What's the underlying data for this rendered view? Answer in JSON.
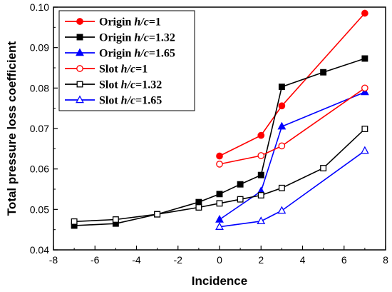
{
  "chart_data": {
    "type": "line",
    "xlabel": "Incidence",
    "ylabel": "Total pressure loss coefficient",
    "xlim": [
      -8,
      8
    ],
    "ylim": [
      0.04,
      0.1
    ],
    "xticks": [
      "-8",
      "-6",
      "-4",
      "-2",
      "0",
      "2",
      "4",
      "6",
      "8"
    ],
    "yticks": [
      "0.04",
      "0.05",
      "0.06",
      "0.07",
      "0.08",
      "0.09",
      "0.10"
    ],
    "grid": false,
    "legend_position": "top-left",
    "series": [
      {
        "name": "Origin h/c=1",
        "label_prefix": "Origin ",
        "label_var": "h/c",
        "label_value": "=1",
        "color": "#ff0000",
        "marker": "circle",
        "filled": true,
        "x": [
          0,
          2,
          3,
          7
        ],
        "y": [
          0.0632,
          0.0683,
          0.0756,
          0.0985
        ]
      },
      {
        "name": "Origin h/c=1.32",
        "label_prefix": "Origin ",
        "label_var": "h/c",
        "label_value": "=1.32",
        "color": "#000000",
        "marker": "square",
        "filled": true,
        "x": [
          -7,
          -5,
          -3,
          -1,
          0,
          1,
          2,
          3,
          5,
          7
        ],
        "y": [
          0.046,
          0.0465,
          0.0488,
          0.0518,
          0.0538,
          0.0562,
          0.0585,
          0.0803,
          0.0839,
          0.0873
        ]
      },
      {
        "name": "Origin h/c=1.65",
        "label_prefix": "Origin ",
        "label_var": "h/c",
        "label_value": "=1.65",
        "color": "#0000ff",
        "marker": "triangle",
        "filled": true,
        "x": [
          0,
          2,
          3,
          7
        ],
        "y": [
          0.0475,
          0.0545,
          0.0705,
          0.079
        ]
      },
      {
        "name": "Slot h/c=1",
        "label_prefix": "Slot ",
        "label_var": "h/c",
        "label_value": "=1",
        "color": "#ff0000",
        "marker": "circle",
        "filled": false,
        "x": [
          0,
          2,
          3,
          7
        ],
        "y": [
          0.0612,
          0.0633,
          0.0657,
          0.08
        ]
      },
      {
        "name": "Slot h/c=1.32",
        "label_prefix": "Slot ",
        "label_var": "h/c",
        "label_value": "=1.32",
        "color": "#000000",
        "marker": "square",
        "filled": false,
        "x": [
          -7,
          -5,
          -3,
          -1,
          0,
          1,
          2,
          3,
          5,
          7
        ],
        "y": [
          0.047,
          0.0475,
          0.0488,
          0.0505,
          0.0515,
          0.0525,
          0.0535,
          0.0553,
          0.0602,
          0.0699
        ]
      },
      {
        "name": "Slot h/c=1.65",
        "label_prefix": "Slot ",
        "label_var": "h/c",
        "label_value": "=1.65",
        "color": "#0000ff",
        "marker": "triangle",
        "filled": false,
        "x": [
          0,
          2,
          3,
          7
        ],
        "y": [
          0.0457,
          0.0471,
          0.0497,
          0.0645
        ]
      }
    ]
  }
}
